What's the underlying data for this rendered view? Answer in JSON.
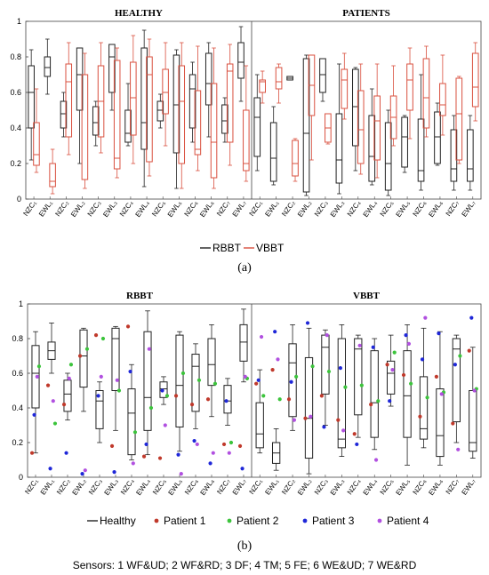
{
  "chart_data": [
    {
      "type": "box",
      "subpanels": [
        {
          "title": "HEALTHY",
          "categories": [
            "NZC₁",
            "EWL₁",
            "NZC₂",
            "EWL₂",
            "NZC₃",
            "EWL₃",
            "NZC₄",
            "EWL₄",
            "NZC₅",
            "EWL₅",
            "NZC₆",
            "EWL₆",
            "NZC₇",
            "EWL₇"
          ],
          "series": [
            {
              "name": "RBBT",
              "color": "#222222",
              "boxes": [
                [
                  0.22,
                  0.4,
                  0.6,
                  0.75,
                  0.84
                ],
                [
                  0.59,
                  0.69,
                  0.74,
                  0.8,
                  0.9
                ],
                [
                  0.35,
                  0.4,
                  0.48,
                  0.55,
                  0.6
                ],
                [
                  0.2,
                  0.5,
                  0.7,
                  0.85,
                  0.85
                ],
                [
                  0.3,
                  0.36,
                  0.43,
                  0.52,
                  0.55
                ],
                [
                  0.5,
                  0.6,
                  0.8,
                  0.87,
                  0.87
                ],
                [
                  0.3,
                  0.32,
                  0.37,
                  0.5,
                  0.65
                ],
                [
                  0.07,
                  0.28,
                  0.43,
                  0.85,
                  0.95
                ],
                [
                  0.4,
                  0.44,
                  0.5,
                  0.55,
                  0.59
                ],
                [
                  0.06,
                  0.26,
                  0.53,
                  0.81,
                  0.84
                ],
                [
                  0.32,
                  0.4,
                  0.62,
                  0.7,
                  0.77
                ],
                [
                  0.35,
                  0.53,
                  0.65,
                  0.82,
                  0.88
                ],
                [
                  0.32,
                  0.37,
                  0.44,
                  0.53,
                  0.57
                ],
                [
                  0.55,
                  0.68,
                  0.77,
                  0.88,
                  0.97
                ]
              ]
            },
            {
              "name": "VBBT",
              "color": "#d9503f",
              "boxes": [
                [
                  0.15,
                  0.19,
                  0.25,
                  0.43,
                  0.62
                ],
                [
                  0.03,
                  0.07,
                  0.1,
                  0.2,
                  0.28
                ],
                [
                  0.25,
                  0.35,
                  0.66,
                  0.76,
                  0.88
                ],
                [
                  0.06,
                  0.11,
                  0.7,
                  0.7,
                  0.82
                ],
                [
                  0.26,
                  0.35,
                  0.55,
                  0.75,
                  0.88
                ],
                [
                  0.12,
                  0.17,
                  0.23,
                  0.78,
                  0.85
                ],
                [
                  0.2,
                  0.36,
                  0.57,
                  0.77,
                  0.92
                ],
                [
                  0.13,
                  0.21,
                  0.7,
                  0.8,
                  0.9
                ],
                [
                  0.3,
                  0.48,
                  0.6,
                  0.73,
                  0.88
                ],
                [
                  0.06,
                  0.2,
                  0.55,
                  0.75,
                  0.88
                ],
                [
                  0.16,
                  0.25,
                  0.28,
                  0.61,
                  0.86
                ],
                [
                  0.06,
                  0.12,
                  0.32,
                  0.65,
                  0.85
                ],
                [
                  0.19,
                  0.32,
                  0.72,
                  0.76,
                  0.87
                ],
                [
                  0.1,
                  0.16,
                  0.2,
                  0.5,
                  0.75
                ]
              ]
            }
          ]
        },
        {
          "title": "PATIENTS",
          "categories": [
            "NZC₁",
            "EWL₁",
            "NZC₂",
            "EWL₂",
            "NZC₃",
            "EWL₃",
            "NZC₄",
            "EWL₄",
            "NZC₅",
            "EWL₅",
            "NZC₆",
            "EWL₆",
            "NZC₇",
            "EWL₇"
          ],
          "series": [
            {
              "name": "RBBT",
              "color": "#222222",
              "boxes": [
                [
                  0.16,
                  0.24,
                  0.46,
                  0.57,
                  0.7
                ],
                [
                  0.08,
                  0.1,
                  0.23,
                  0.43,
                  0.52
                ],
                [
                  0.67,
                  0.67,
                  0.68,
                  0.69,
                  0.69
                ],
                [
                  0.02,
                  0.04,
                  0.37,
                  0.79,
                  0.81
                ],
                [
                  0.55,
                  0.6,
                  0.7,
                  0.79,
                  0.79
                ],
                [
                  0.03,
                  0.09,
                  0.22,
                  0.48,
                  0.76
                ],
                [
                  0.16,
                  0.3,
                  0.52,
                  0.73,
                  0.74
                ],
                [
                  0.08,
                  0.1,
                  0.24,
                  0.47,
                  0.62
                ],
                [
                  0.02,
                  0.05,
                  0.2,
                  0.43,
                  0.5
                ],
                [
                  0.15,
                  0.18,
                  0.35,
                  0.46,
                  0.47
                ],
                [
                  0.05,
                  0.1,
                  0.16,
                  0.45,
                  0.7
                ],
                [
                  0.19,
                  0.2,
                  0.35,
                  0.49,
                  0.54
                ],
                [
                  0.05,
                  0.1,
                  0.17,
                  0.39,
                  0.47
                ],
                [
                  0.05,
                  0.1,
                  0.17,
                  0.39,
                  0.47
                ]
              ]
            },
            {
              "name": "VBBT",
              "color": "#d9503f",
              "boxes": [
                [
                  0.54,
                  0.6,
                  0.66,
                  0.67,
                  0.72
                ],
                [
                  0.54,
                  0.62,
                  0.66,
                  0.74,
                  0.76
                ],
                [
                  0.1,
                  0.13,
                  0.2,
                  0.33,
                  0.34
                ],
                [
                  0.22,
                  0.47,
                  0.64,
                  0.81,
                  0.81
                ],
                [
                  0.31,
                  0.32,
                  0.4,
                  0.48,
                  0.48
                ],
                [
                  0.45,
                  0.51,
                  0.67,
                  0.73,
                  0.82
                ],
                [
                  0.14,
                  0.2,
                  0.39,
                  0.61,
                  0.76
                ],
                [
                  0.12,
                  0.22,
                  0.44,
                  0.58,
                  0.76
                ],
                [
                  0.3,
                  0.34,
                  0.46,
                  0.58,
                  0.75
                ],
                [
                  0.34,
                  0.5,
                  0.67,
                  0.76,
                  0.85
                ],
                [
                  0.35,
                  0.4,
                  0.57,
                  0.79,
                  0.86
                ],
                [
                  0.36,
                  0.47,
                  0.53,
                  0.65,
                  0.81
                ],
                [
                  0.2,
                  0.22,
                  0.48,
                  0.68,
                  0.69
                ],
                [
                  0.44,
                  0.52,
                  0.63,
                  0.82,
                  0.88
                ]
              ]
            }
          ]
        }
      ],
      "ylim": [
        0,
        1
      ],
      "yticks": [
        "0",
        "0.2",
        "0.4",
        "0.6",
        "0.8",
        "1"
      ],
      "legend": [
        "RBBT",
        "VBBT"
      ],
      "panel_label": "(a)"
    },
    {
      "type": "box+scatter",
      "subpanels": [
        {
          "title": "RBBT",
          "categories": [
            "NZC₁",
            "EWL₁",
            "NZC₂",
            "EWL₂",
            "NZC₃",
            "EWL₃",
            "NZC₄",
            "EWL₄",
            "NZC₅",
            "EWL₅",
            "NZC₆",
            "EWL₆",
            "NZC₇",
            "EWL₇"
          ],
          "boxes": [
            [
              0.14,
              0.4,
              0.6,
              0.76,
              0.84
            ],
            [
              0.6,
              0.68,
              0.73,
              0.78,
              0.89
            ],
            [
              0.33,
              0.38,
              0.48,
              0.56,
              0.6
            ],
            [
              0.38,
              0.52,
              0.7,
              0.85,
              0.86
            ],
            [
              0.2,
              0.28,
              0.44,
              0.5,
              0.55
            ],
            [
              0.27,
              0.5,
              0.8,
              0.86,
              0.87
            ],
            [
              0.1,
              0.13,
              0.37,
              0.51,
              0.65
            ],
            [
              0.13,
              0.27,
              0.46,
              0.84,
              0.96
            ],
            [
              0.42,
              0.46,
              0.51,
              0.55,
              0.58
            ],
            [
              0.15,
              0.29,
              0.53,
              0.82,
              0.84
            ],
            [
              0.28,
              0.38,
              0.64,
              0.71,
              0.77
            ],
            [
              0.35,
              0.53,
              0.65,
              0.8,
              0.88
            ],
            [
              0.3,
              0.37,
              0.44,
              0.53,
              0.57
            ],
            [
              0.55,
              0.67,
              0.78,
              0.88,
              0.97
            ]
          ],
          "patients": [
            {
              "name": "Patient 1",
              "color": "#c0392b",
              "values": [
                0.14,
                0.53,
                0.42,
                0.7,
                0.82,
                0.18,
                0.87,
                0.12,
                0.11,
                0.47,
                0.42,
                0.45,
                0.19,
                0.18
              ]
            },
            {
              "name": "Patient 2",
              "color": "#3cc43c",
              "values": [
                0.64,
                0.31,
                0.65,
                0.74,
                0.8,
                0.5,
                0.26,
                0.4,
                0.47,
                0.6,
                0.56,
                0.54,
                0.2,
                0.57
              ]
            },
            {
              "name": "Patient 3",
              "color": "#1f27d8",
              "values": [
                0.36,
                0.05,
                0.14,
                0.02,
                0.47,
                0.03,
                0.61,
                0.19,
                0.5,
                0.13,
                0.21,
                0.08,
                0.44,
                0.05
              ]
            },
            {
              "name": "Patient 4",
              "color": "#b150e0",
              "values": [
                0.58,
                0.44,
                0.57,
                0.04,
                0.58,
                0.56,
                0.08,
                0.74,
                0.3,
                0.02,
                0.19,
                0.14,
                0.14,
                0.58
              ]
            }
          ]
        },
        {
          "title": "VBBT",
          "categories": [
            "NZC₁",
            "EWL₁",
            "NZC₂",
            "EWL₂",
            "NZC₃",
            "EWL₃",
            "NZC₄",
            "EWL₄",
            "NZC₅",
            "EWL₅",
            "NZC₆",
            "EWL₆",
            "NZC₇",
            "EWL₇"
          ],
          "boxes": [
            [
              0.14,
              0.17,
              0.25,
              0.43,
              0.62
            ],
            [
              0.04,
              0.08,
              0.14,
              0.2,
              0.28
            ],
            [
              0.27,
              0.35,
              0.66,
              0.77,
              0.88
            ],
            [
              0.02,
              0.11,
              0.34,
              0.69,
              0.86
            ],
            [
              0.3,
              0.48,
              0.75,
              0.82,
              0.85
            ],
            [
              0.12,
              0.17,
              0.22,
              0.8,
              0.88
            ],
            [
              0.23,
              0.36,
              0.74,
              0.8,
              0.82
            ],
            [
              0.16,
              0.23,
              0.43,
              0.73,
              0.8
            ],
            [
              0.41,
              0.48,
              0.6,
              0.67,
              0.82
            ],
            [
              0.07,
              0.23,
              0.47,
              0.73,
              0.88
            ],
            [
              0.17,
              0.22,
              0.28,
              0.58,
              0.86
            ],
            [
              0.07,
              0.12,
              0.24,
              0.51,
              0.84
            ],
            [
              0.2,
              0.32,
              0.74,
              0.8,
              0.82
            ],
            [
              0.11,
              0.15,
              0.2,
              0.5,
              0.75
            ]
          ],
          "patients": [
            {
              "name": "Patient 1",
              "color": "#c0392b",
              "values": [
                0.54,
                0.62,
                0.45,
                0.34,
                0.47,
                0.33,
                0.25,
                0.42,
                0.65,
                0.59,
                0.35,
                0.58,
                0.31,
                0.73
              ]
            },
            {
              "name": "Patient 2",
              "color": "#3cc43c",
              "values": [
                0.47,
                0.45,
                0.58,
                0.64,
                0.61,
                0.52,
                0.53,
                0.44,
                0.72,
                0.54,
                0.46,
                0.49,
                0.7,
                0.51
              ]
            },
            {
              "name": "Patient 3",
              "color": "#1f27d8",
              "values": [
                0.56,
                0.84,
                0.55,
                0.89,
                0.29,
                0.63,
                0.19,
                0.75,
                0.44,
                0.82,
                0.68,
                0.83,
                0.65,
                0.92
              ]
            },
            {
              "name": "Patient 4",
              "color": "#b150e0",
              "values": [
                0.81,
                0.68,
                0.33,
                0.35,
                0.82,
                0.27,
                0.76,
                0.1,
                0.62,
                0.77,
                0.92,
                0.48,
                0.16,
                0.5
              ]
            }
          ]
        }
      ],
      "ylim": [
        0,
        1
      ],
      "yticks": [
        "0",
        "0.2",
        "0.4",
        "0.6",
        "0.8",
        "1"
      ],
      "legend": [
        "Healthy",
        "Patient 1",
        "Patient 2",
        "Patient 3",
        "Patient 4"
      ],
      "panel_label": "(b)"
    }
  ],
  "caption": "Sensors: 1 WF&UD; 2 WF&RD; 3 DF; 4 TM; 5 FE; 6 WE&UD; 7 WE&RD",
  "colors": {
    "rbbt": "#222222",
    "vbbt": "#d9503f"
  }
}
